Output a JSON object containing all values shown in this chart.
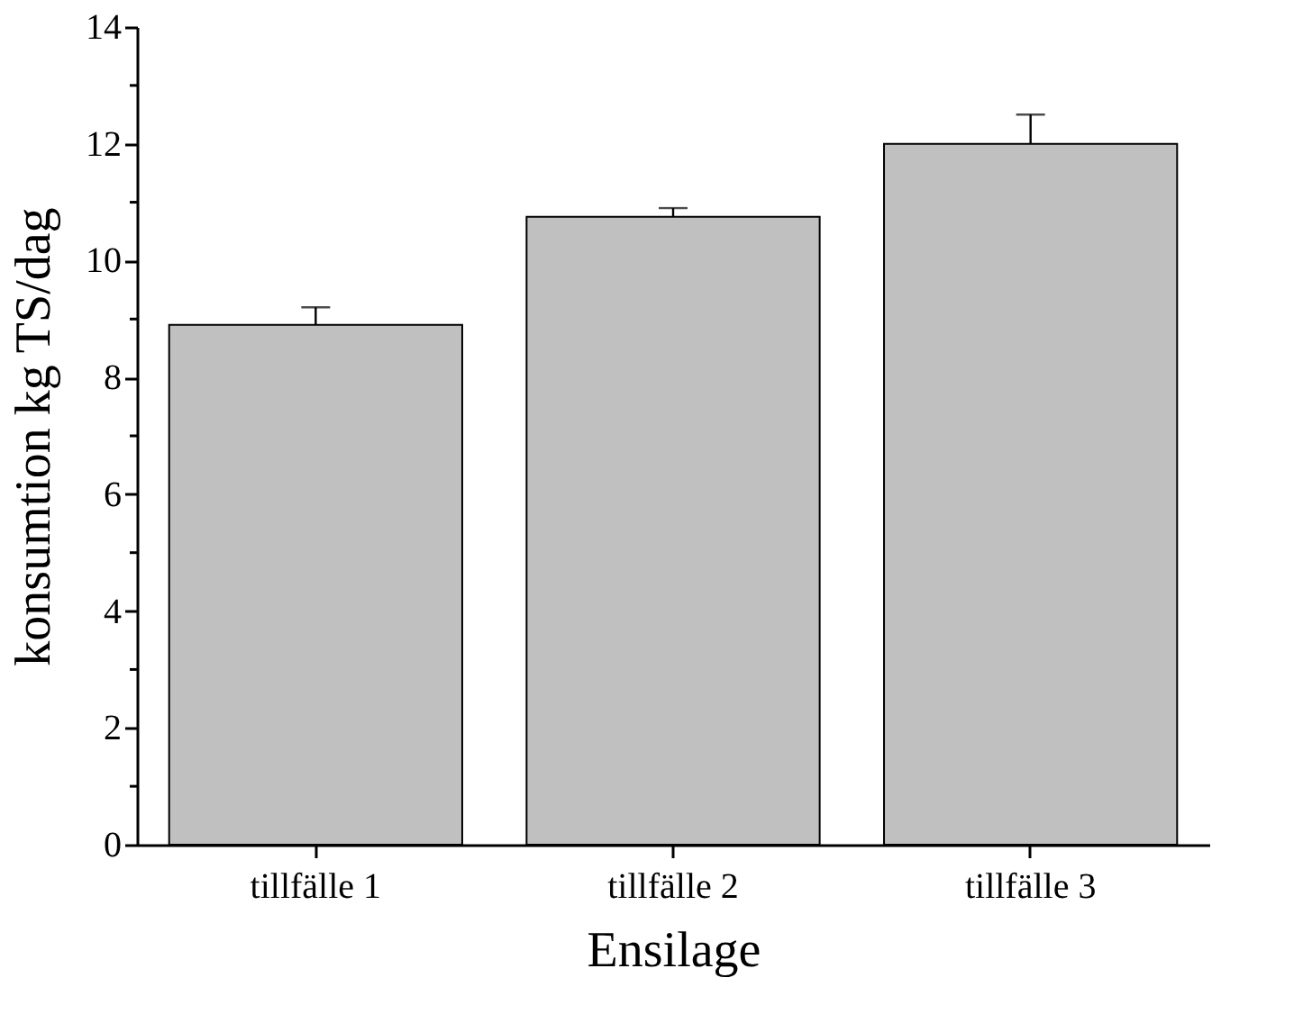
{
  "chart_data": {
    "type": "bar",
    "xlabel": "Ensilage",
    "ylabel": "konsumtion kg TS/dag",
    "categories": [
      "tillfälle 1",
      "tillfälle 2",
      "tillfälle 3"
    ],
    "values": [
      8.9,
      10.75,
      12.0
    ],
    "errors": [
      [
        8.9,
        9.2
      ],
      [
        10.75,
        10.9
      ],
      [
        12.0,
        12.5
      ]
    ],
    "color": "#c0c0c0",
    "ylim": [
      0,
      14
    ],
    "yticks": [
      0,
      {
        "value": 1,
        "label": null
      },
      2,
      {
        "value": 3,
        "label": null
      },
      4,
      {
        "value": 5,
        "label": null
      },
      6,
      {
        "value": 7,
        "label": null
      },
      8,
      {
        "value": 9,
        "label": null
      },
      10,
      {
        "value": 11,
        "label": null
      },
      12,
      {
        "value": 13,
        "label": null
      },
      14
    ],
    "grid": false
  }
}
